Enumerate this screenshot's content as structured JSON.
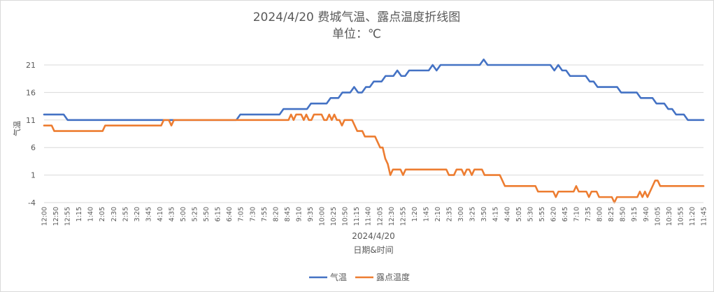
{
  "chart_data": {
    "type": "line",
    "title": "2024/4/20 费城气温、露点温度折线图",
    "subtitle": "单位：℃",
    "xlabel": "日期&时间",
    "ylabel": "气温",
    "date_label": "2024/4/20",
    "ylim": [
      -4,
      21
    ],
    "yticks": [
      21,
      16,
      11,
      6,
      1,
      -4
    ],
    "grid": true,
    "legend_position": "bottom",
    "x_tick_labels": [
      "12:00",
      "12:50",
      "12:55",
      "1:15",
      "1:40",
      "2:05",
      "2:30",
      "2:55",
      "3:20",
      "3:45",
      "4:10",
      "4:35",
      "5:00",
      "5:25",
      "5:50",
      "6:15",
      "6:40",
      "7:05",
      "7:30",
      "7:55",
      "8:20",
      "8:45",
      "9:10",
      "9:35",
      "10:00",
      "10:25",
      "10:50",
      "11:15",
      "11:40",
      "12:05",
      "12:30",
      "12:55",
      "1:20",
      "1:45",
      "2:10",
      "2:35",
      "3:00",
      "3:25",
      "3:50",
      "4:15",
      "4:40",
      "5:05",
      "5:30",
      "5:55",
      "6:20",
      "6:45",
      "7:10",
      "7:35",
      "8:00",
      "8:25",
      "8:50",
      "9:15",
      "9:40",
      "10:05",
      "10:30",
      "10:55",
      "11:20",
      "11:45"
    ],
    "series": [
      {
        "name": "气温",
        "color": "#4472C4",
        "values": [
          12,
          12,
          12,
          12,
          12,
          12,
          11,
          11,
          11,
          11,
          11,
          11,
          11,
          11,
          11,
          11,
          11,
          11,
          11,
          11,
          11,
          11,
          11,
          11,
          11,
          11,
          11,
          11,
          11,
          11,
          11,
          11,
          11,
          11,
          11,
          11,
          11,
          11,
          11,
          11,
          11,
          11,
          11,
          11,
          11,
          11,
          11,
          11,
          11,
          11,
          12,
          12,
          12,
          12,
          12,
          12,
          12,
          12,
          12,
          12,
          12,
          13,
          13,
          13,
          13,
          13,
          13,
          13,
          14,
          14,
          14,
          14,
          14,
          15,
          15,
          15,
          16,
          16,
          16,
          17,
          16,
          16,
          17,
          17,
          18,
          18,
          18,
          19,
          19,
          19,
          20,
          19,
          19,
          20,
          20,
          20,
          20,
          20,
          20,
          21,
          20,
          21,
          21,
          21,
          21,
          21,
          21,
          21,
          21,
          21,
          21,
          21,
          22,
          21,
          21,
          21,
          21,
          21,
          21,
          21,
          21,
          21,
          21,
          21,
          21,
          21,
          21,
          21,
          21,
          21,
          20,
          21,
          20,
          20,
          19,
          19,
          19,
          19,
          19,
          18,
          18,
          17,
          17,
          17,
          17,
          17,
          17,
          16,
          16,
          16,
          16,
          16,
          15,
          15,
          15,
          15,
          14,
          14,
          14,
          13,
          13,
          12,
          12,
          12,
          11,
          11,
          11,
          11,
          11
        ]
      },
      {
        "name": "露点温度",
        "color": "#ED7D31",
        "values": [
          10,
          10,
          10,
          10,
          9,
          9,
          9,
          9,
          9,
          9,
          9,
          9,
          9,
          9,
          9,
          9,
          9,
          9,
          9,
          9,
          9,
          9,
          9,
          9,
          10,
          10,
          10,
          10,
          10,
          10,
          10,
          10,
          10,
          10,
          10,
          10,
          10,
          10,
          10,
          10,
          10,
          10,
          10,
          10,
          10,
          10,
          10,
          11,
          11,
          11,
          10,
          11,
          11,
          11,
          11,
          11,
          11,
          11,
          11,
          11,
          11,
          11,
          11,
          11,
          11,
          11,
          11,
          11,
          11,
          11,
          11,
          11,
          11,
          11,
          11,
          11,
          11,
          11,
          11,
          11,
          11,
          11,
          11,
          11,
          11,
          11,
          11,
          11,
          11,
          11,
          11,
          11,
          11,
          11,
          11,
          11,
          11,
          12,
          11,
          12,
          12,
          12,
          11,
          12,
          11,
          11,
          12,
          12,
          12,
          12,
          11,
          11,
          12,
          11,
          12,
          11,
          11,
          10,
          11,
          11,
          11,
          11,
          10,
          9,
          9,
          9,
          8,
          8,
          8,
          8,
          8,
          7,
          6,
          6,
          4,
          3,
          1,
          2,
          2,
          2,
          2,
          1,
          2,
          2,
          2,
          2,
          2,
          2,
          2,
          2,
          2,
          2,
          2,
          2,
          2,
          2,
          2,
          2,
          2,
          1,
          1,
          1,
          2,
          2,
          2,
          1,
          2,
          2,
          1,
          2,
          2,
          2,
          2,
          1,
          1,
          1,
          1,
          1,
          1,
          1,
          0,
          -1,
          -1,
          -1,
          -1,
          -1,
          -1,
          -1,
          -1,
          -1,
          -1,
          -1,
          -1,
          -1,
          -2,
          -2,
          -2,
          -2,
          -2,
          -2,
          -2,
          -3,
          -2,
          -2,
          -2,
          -2,
          -2,
          -2,
          -2,
          -1,
          -2,
          -2,
          -2,
          -2,
          -3,
          -2,
          -2,
          -2,
          -3,
          -3,
          -3,
          -3,
          -3,
          -3,
          -4,
          -3,
          -3,
          -3,
          -3,
          -3,
          -3,
          -3,
          -3,
          -3,
          -2,
          -3,
          -2,
          -3,
          -2,
          -1,
          0,
          0,
          -1,
          -1,
          -1,
          -1,
          -1,
          -1,
          -1,
          -1,
          -1,
          -1,
          -1,
          -1,
          -1,
          -1,
          -1,
          -1,
          -1,
          -1
        ]
      }
    ]
  }
}
